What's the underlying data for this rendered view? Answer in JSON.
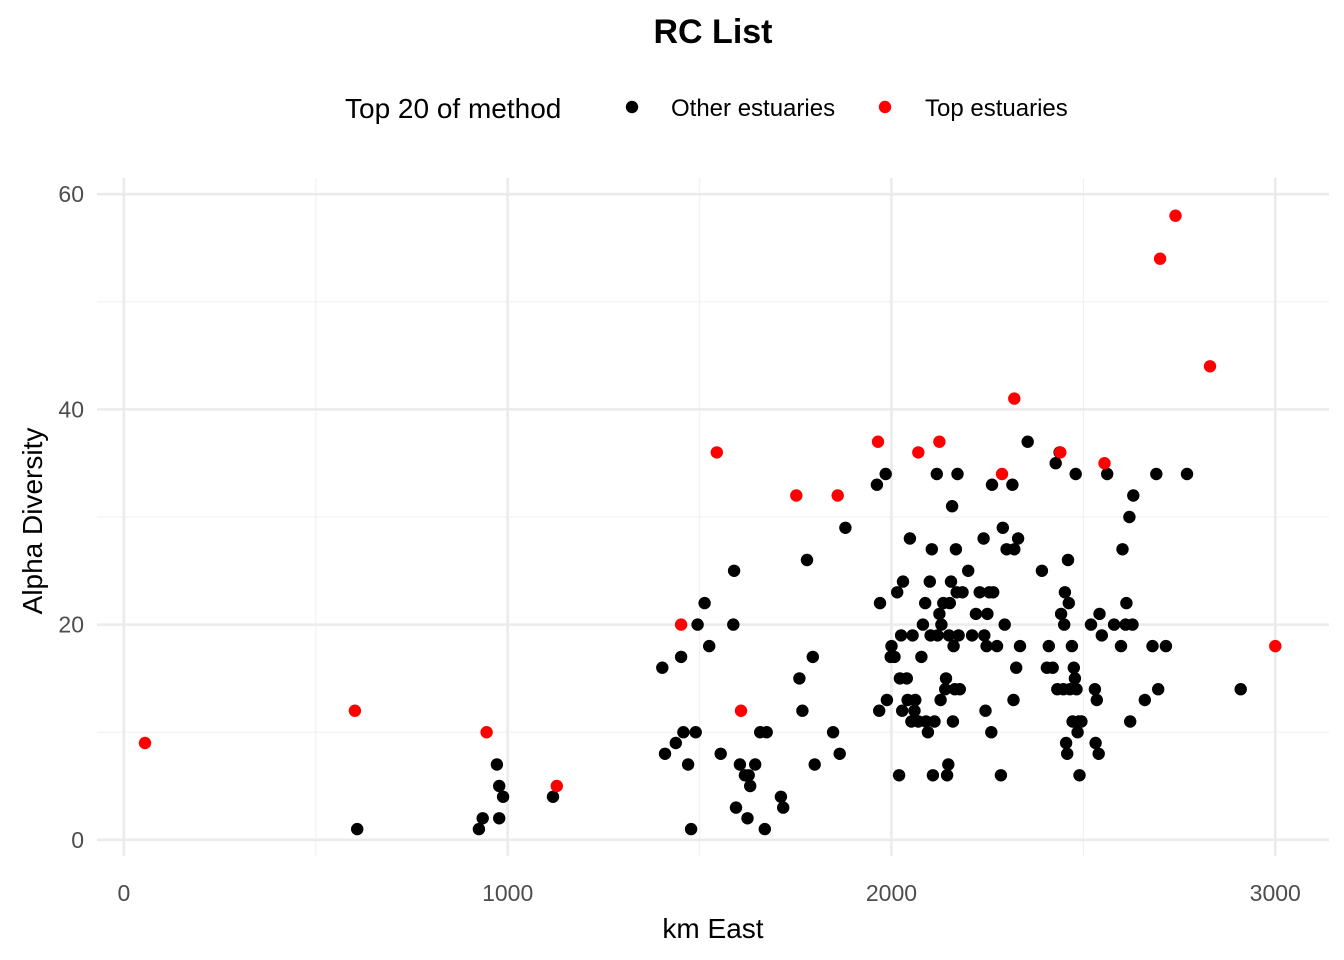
{
  "chart_data": {
    "type": "scatter",
    "title": "RC List",
    "xlabel": "km East",
    "ylabel": "Alpha Diversity",
    "xlim": [
      -70,
      3140
    ],
    "ylim": [
      -1.5,
      61.5
    ],
    "x_ticks": [
      0,
      1000,
      2000,
      3000
    ],
    "x_tick_labels": [
      "0",
      "1000",
      "2000",
      "3000"
    ],
    "y_ticks": [
      0,
      20,
      40,
      60
    ],
    "y_tick_labels": [
      "0",
      "20",
      "40",
      "60"
    ],
    "grid": true,
    "legend": {
      "title": "Top 20 of method",
      "position": "top",
      "entries": [
        {
          "label": "Other estuaries",
          "color": "#000000"
        },
        {
          "label": "Top estuaries",
          "color": "#ff0000"
        }
      ]
    },
    "series": [
      {
        "name": "Other estuaries",
        "color": "#000000",
        "points": [
          [
            608,
            1
          ],
          [
            925,
            1
          ],
          [
            935,
            2
          ],
          [
            978,
            2
          ],
          [
            972,
            7
          ],
          [
            978,
            5
          ],
          [
            988,
            4
          ],
          [
            1118,
            4
          ],
          [
            1403,
            16
          ],
          [
            1410,
            8
          ],
          [
            1438,
            9
          ],
          [
            1452,
            17
          ],
          [
            1458,
            10
          ],
          [
            1470,
            7
          ],
          [
            1478,
            1
          ],
          [
            1490,
            10
          ],
          [
            1495,
            20
          ],
          [
            1513,
            22
          ],
          [
            1525,
            18
          ],
          [
            1555,
            8
          ],
          [
            1590,
            25
          ],
          [
            1588,
            20
          ],
          [
            1595,
            3
          ],
          [
            1605,
            7
          ],
          [
            1618,
            6
          ],
          [
            1625,
            2
          ],
          [
            1628,
            6
          ],
          [
            1632,
            5
          ],
          [
            1645,
            7
          ],
          [
            1658,
            10
          ],
          [
            1670,
            1
          ],
          [
            1675,
            10
          ],
          [
            1712,
            4
          ],
          [
            1718,
            3
          ],
          [
            1760,
            15
          ],
          [
            1768,
            12
          ],
          [
            1780,
            26
          ],
          [
            1795,
            17
          ],
          [
            1800,
            7
          ],
          [
            1848,
            10
          ],
          [
            1865,
            8
          ],
          [
            1880,
            29
          ],
          [
            1962,
            33
          ],
          [
            1968,
            12
          ],
          [
            1970,
            22
          ],
          [
            1985,
            34
          ],
          [
            1988,
            13
          ],
          [
            1998,
            17
          ],
          [
            2000,
            18
          ],
          [
            2008,
            17
          ],
          [
            2015,
            23
          ],
          [
            2020,
            6
          ],
          [
            2022,
            15
          ],
          [
            2025,
            19
          ],
          [
            2028,
            12
          ],
          [
            2030,
            24
          ],
          [
            2040,
            15
          ],
          [
            2042,
            13
          ],
          [
            2048,
            28
          ],
          [
            2052,
            11
          ],
          [
            2055,
            19
          ],
          [
            2060,
            12
          ],
          [
            2062,
            13
          ],
          [
            2070,
            11
          ],
          [
            2078,
            17
          ],
          [
            2082,
            20
          ],
          [
            2088,
            22
          ],
          [
            2090,
            11
          ],
          [
            2095,
            10
          ],
          [
            2100,
            24
          ],
          [
            2102,
            19
          ],
          [
            2105,
            27
          ],
          [
            2108,
            6
          ],
          [
            2112,
            11
          ],
          [
            2118,
            34
          ],
          [
            2120,
            19
          ],
          [
            2125,
            21
          ],
          [
            2128,
            13
          ],
          [
            2130,
            20
          ],
          [
            2135,
            22
          ],
          [
            2140,
            14
          ],
          [
            2142,
            15
          ],
          [
            2145,
            6
          ],
          [
            2148,
            7
          ],
          [
            2150,
            19
          ],
          [
            2152,
            22
          ],
          [
            2155,
            24
          ],
          [
            2158,
            31
          ],
          [
            2160,
            11
          ],
          [
            2162,
            18
          ],
          [
            2165,
            14
          ],
          [
            2168,
            27
          ],
          [
            2170,
            23
          ],
          [
            2172,
            34
          ],
          [
            2175,
            19
          ],
          [
            2178,
            14
          ],
          [
            2185,
            23
          ],
          [
            2200,
            25
          ],
          [
            2210,
            19
          ],
          [
            2220,
            21
          ],
          [
            2230,
            23
          ],
          [
            2240,
            28
          ],
          [
            2242,
            19
          ],
          [
            2245,
            12
          ],
          [
            2248,
            18
          ],
          [
            2250,
            21
          ],
          [
            2255,
            23
          ],
          [
            2260,
            10
          ],
          [
            2262,
            33
          ],
          [
            2265,
            23
          ],
          [
            2275,
            18
          ],
          [
            2285,
            6
          ],
          [
            2290,
            29
          ],
          [
            2295,
            20
          ],
          [
            2300,
            27
          ],
          [
            2315,
            33
          ],
          [
            2318,
            13
          ],
          [
            2320,
            27
          ],
          [
            2325,
            16
          ],
          [
            2330,
            28
          ],
          [
            2335,
            18
          ],
          [
            2355,
            37
          ],
          [
            2392,
            25
          ],
          [
            2405,
            16
          ],
          [
            2410,
            18
          ],
          [
            2420,
            16
          ],
          [
            2428,
            35
          ],
          [
            2432,
            14
          ],
          [
            2438,
            36
          ],
          [
            2442,
            21
          ],
          [
            2448,
            14
          ],
          [
            2450,
            20
          ],
          [
            2452,
            23
          ],
          [
            2455,
            9
          ],
          [
            2458,
            8
          ],
          [
            2460,
            26
          ],
          [
            2462,
            22
          ],
          [
            2465,
            14
          ],
          [
            2470,
            18
          ],
          [
            2472,
            11
          ],
          [
            2475,
            16
          ],
          [
            2478,
            15
          ],
          [
            2480,
            34
          ],
          [
            2482,
            14
          ],
          [
            2485,
            10
          ],
          [
            2488,
            11
          ],
          [
            2490,
            6
          ],
          [
            2495,
            11
          ],
          [
            2520,
            20
          ],
          [
            2530,
            14
          ],
          [
            2532,
            9
          ],
          [
            2535,
            13
          ],
          [
            2540,
            8
          ],
          [
            2542,
            21
          ],
          [
            2548,
            19
          ],
          [
            2562,
            34
          ],
          [
            2580,
            20
          ],
          [
            2598,
            18
          ],
          [
            2602,
            27
          ],
          [
            2610,
            20
          ],
          [
            2612,
            22
          ],
          [
            2620,
            30
          ],
          [
            2622,
            11
          ],
          [
            2628,
            20
          ],
          [
            2630,
            32
          ],
          [
            2660,
            13
          ],
          [
            2680,
            18
          ],
          [
            2690,
            34
          ],
          [
            2695,
            14
          ],
          [
            2715,
            18
          ],
          [
            2770,
            34
          ],
          [
            2910,
            14
          ]
        ]
      },
      {
        "name": "Top estuaries",
        "color": "#ff0000",
        "points": [
          [
            55,
            9
          ],
          [
            602,
            12
          ],
          [
            945,
            10
          ],
          [
            1128,
            5
          ],
          [
            1452,
            20
          ],
          [
            1545,
            36
          ],
          [
            1608,
            12
          ],
          [
            1752,
            32
          ],
          [
            1860,
            32
          ],
          [
            1965,
            37
          ],
          [
            2070,
            36
          ],
          [
            2125,
            37
          ],
          [
            2288,
            34
          ],
          [
            2320,
            41
          ],
          [
            2440,
            36
          ],
          [
            2555,
            35
          ],
          [
            2700,
            54
          ],
          [
            2740,
            58
          ],
          [
            2830,
            44
          ],
          [
            3000,
            18
          ]
        ]
      }
    ]
  }
}
